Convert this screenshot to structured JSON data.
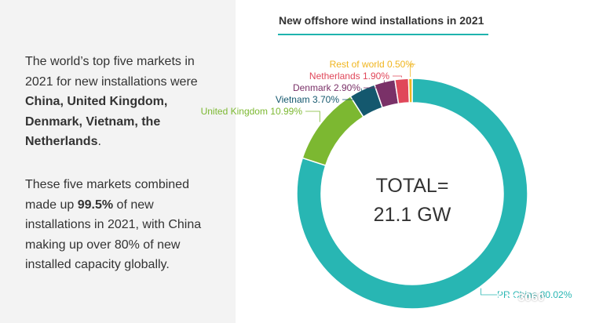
{
  "left_text": {
    "p1_plain": "The world’s top five markets in 2021 for new installations were ",
    "p1_bold": "China, United Kingdom, Denmark, Vietnam, the Netherlands",
    "p1_end": ".",
    "p2_a": "These five markets combined made up ",
    "p2_bold": "99.5%",
    "p2_b": " of new installations in 2021, with China making up over 80% of new installed capacity globally."
  },
  "watermark": {
    "text": "3060",
    "icon": "wechat-icon"
  },
  "colors": {
    "accent": "#1fb3ae"
  },
  "chart_data": {
    "type": "donut",
    "title": "New offshore wind installations in 2021",
    "center_label": [
      "TOTAL=",
      "21.1 GW"
    ],
    "slices": [
      {
        "name": "PR China",
        "value": 80.02,
        "label": "PR China 80.02%",
        "color": "#28b6b3"
      },
      {
        "name": "United Kingdom",
        "value": 10.99,
        "label": "United Kingdom 10.99%",
        "color": "#7cb831"
      },
      {
        "name": "Vietnam",
        "value": 3.7,
        "label": "Vietnam 3.70%",
        "color": "#14586e"
      },
      {
        "name": "Denmark",
        "value": 2.9,
        "label": "Denmark 2.90%",
        "color": "#7a3168"
      },
      {
        "name": "Netherlands",
        "value": 1.9,
        "label": "Netherlands 1.90%",
        "color": "#e0475a"
      },
      {
        "name": "Rest of world",
        "value": 0.5,
        "label": "Rest of world 0.50%",
        "color": "#f0b51e"
      }
    ]
  }
}
